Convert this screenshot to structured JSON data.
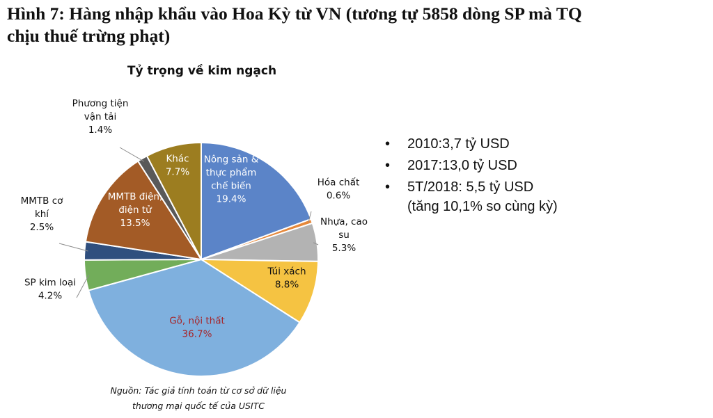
{
  "figure": {
    "title_line1": "Hình 7: Hàng nhập khẩu vào Hoa Kỳ từ VN (tương tự 5858 dòng SP mà TQ",
    "title_line2": "chịu thuế trừng phạt)"
  },
  "chart_data": {
    "type": "pie",
    "title": "Tỷ trọng về kim ngạch",
    "unit": "%",
    "slices": [
      {
        "label": [
          "Nông sản &",
          "thực phẩm",
          "chế biến"
        ],
        "value": 19.4,
        "display": "19.4%",
        "color": "#5b84c8",
        "label_color": "#ffffff",
        "position": "inside"
      },
      {
        "label": [
          "Hóa chất"
        ],
        "value": 0.6,
        "display": "0.6%",
        "color": "#e6883a",
        "label_color": "#111111",
        "position": "outside"
      },
      {
        "label": [
          "Nhựa, cao",
          "su"
        ],
        "value": 5.3,
        "display": "5.3%",
        "color": "#b3b3b3",
        "label_color": "#111111",
        "position": "outside"
      },
      {
        "label": [
          "Túi xách"
        ],
        "value": 8.8,
        "display": "8.8%",
        "color": "#f5c342",
        "label_color": "#111111",
        "position": "inside"
      },
      {
        "label": [
          "Gỗ, nội thất"
        ],
        "value": 36.7,
        "display": "36.7%",
        "color": "#7fb0de",
        "label_color": "#a6262a",
        "position": "inside"
      },
      {
        "label": [
          "SP kim loại"
        ],
        "value": 4.2,
        "display": "4.2%",
        "color": "#72ad5a",
        "label_color": "#111111",
        "position": "outside"
      },
      {
        "label": [
          "MMTB cơ",
          "khí"
        ],
        "value": 2.5,
        "display": "2.5%",
        "color": "#2f4f7e",
        "label_color": "#111111",
        "position": "outside"
      },
      {
        "label": [
          "MMTB điện,",
          "điện tử"
        ],
        "value": 13.5,
        "display": "13.5%",
        "color": "#a35b26",
        "label_color": "#ffffff",
        "position": "inside"
      },
      {
        "label": [
          "Phương tiện",
          "vận tải"
        ],
        "value": 1.4,
        "display": "1.4%",
        "color": "#595959",
        "label_color": "#111111",
        "position": "outside"
      },
      {
        "label": [
          "Khác"
        ],
        "value": 7.7,
        "display": "7.7%",
        "color": "#9c7d20",
        "label_color": "#ffffff",
        "position": "inside"
      }
    ],
    "legend": "none"
  },
  "bullets": [
    {
      "text": "2010:3,7 tỷ USD",
      "sub": ""
    },
    {
      "text": "2017:13,0 tỷ USD",
      "sub": ""
    },
    {
      "text": "5T/2018: 5,5 tỷ USD",
      "sub": "(tăng 10,1% so cùng kỳ)"
    }
  ],
  "bullet_char": "•",
  "source": {
    "line1": "Nguồn: Tác giả tính toán từ cơ sở dữ liệu",
    "line2": "thương mại quốc tế của USITC"
  }
}
